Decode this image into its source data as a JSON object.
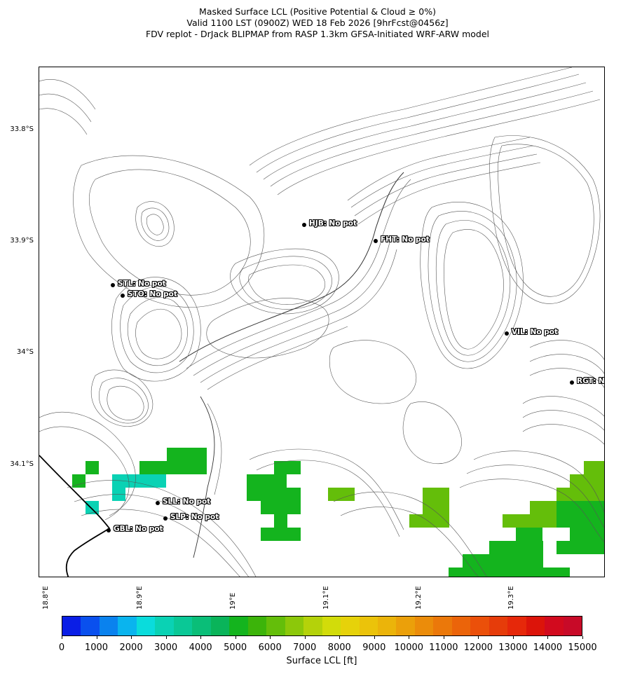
{
  "title": {
    "line1": "Masked Surface LCL (Positive Potential & Cloud ≥ 0%)",
    "line2": "Valid 1100 LST (0900Z) WED 18 Feb 2026 [9hrFcst@0456z]",
    "line3": "FDV replot - DrJack BLIPMAP from RASP 1.3km GFSA-Initiated WRF-ARW model"
  },
  "lat_labels": [
    "33.8°S",
    "33.9°S",
    "34°S",
    "34.1°S"
  ],
  "lon_labels": [
    "18.8°E",
    "18.9°E",
    "19°E",
    "19.1°E",
    "19.2°E",
    "19.3°E"
  ],
  "stations": [
    {
      "id": "HJB",
      "label": "HJB: No pot"
    },
    {
      "id": "FHT",
      "label": "FHT: No pot"
    },
    {
      "id": "STL",
      "label": "STL: No pot"
    },
    {
      "id": "STO",
      "label": "STO: No pot"
    },
    {
      "id": "VIL",
      "label": "VIL: No pot"
    },
    {
      "id": "RGT",
      "label": "RGT: No pot"
    },
    {
      "id": "SLL",
      "label": "SLL: No pot"
    },
    {
      "id": "SLP",
      "label": "SLP: No pot"
    },
    {
      "id": "GBL",
      "label": "GBL: No pot"
    }
  ],
  "colorbar": {
    "label": "Surface LCL [ft]",
    "ticks": [
      "0",
      "1000",
      "2000",
      "3000",
      "4000",
      "5000",
      "6000",
      "7000",
      "8000",
      "9000",
      "10000",
      "11000",
      "12000",
      "13000",
      "14000",
      "15000"
    ],
    "colors": [
      "#0a1ee6",
      "#0a50ee",
      "#0a82ee",
      "#0ab4ee",
      "#0adcdc",
      "#0ad2b4",
      "#0ac896",
      "#0abe78",
      "#0ab45a",
      "#14b41e",
      "#3cb40a",
      "#64be0a",
      "#8cc80a",
      "#b4d20a",
      "#d2dc0a",
      "#e6d20a",
      "#ebc30a",
      "#ebb40a",
      "#eba00a",
      "#eb8c0a",
      "#eb780a",
      "#eb640a",
      "#eb500a",
      "#e63c0a",
      "#e6280a",
      "#dc140a",
      "#d20a1e",
      "#c80a28"
    ]
  },
  "cell_colors": {
    "green": "#14b41e",
    "lime": "#64be0a",
    "teal": "#0ad2b4",
    "mid": "#0abe78"
  }
}
